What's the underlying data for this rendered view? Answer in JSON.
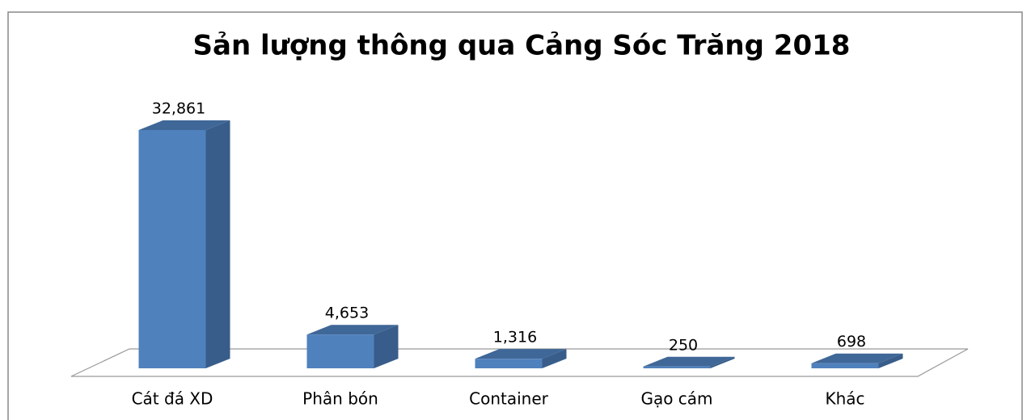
{
  "chart_data": {
    "type": "bar3d",
    "title": "Sản lượng thông qua Cảng Sóc Trăng 2018",
    "categories": [
      "Cát đá XD",
      "Phân bón",
      "Container",
      "Gạo cám",
      "Khác"
    ],
    "values": [
      32861,
      4653,
      1316,
      250,
      698
    ],
    "value_labels": [
      "32,861",
      "4,653",
      "1,316",
      "250",
      "698"
    ],
    "color": "#4f81bd"
  }
}
